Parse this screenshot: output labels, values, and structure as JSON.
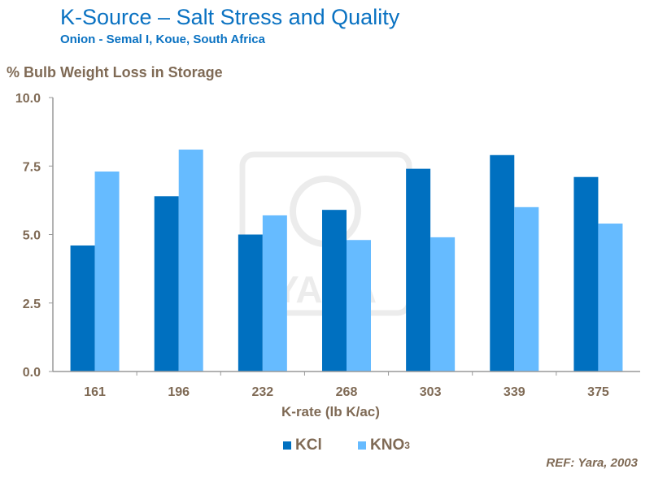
{
  "header": {
    "title": "K-Source – Salt Stress and Quality",
    "subtitle": "Onion  - Semal I, Koue, South Africa"
  },
  "ref": "REF: Yara, 2003",
  "watermark": "YARA",
  "chart_data": {
    "type": "bar",
    "ylabel": "%  Bulb Weight Loss in Storage",
    "xlabel": "K-rate (lb K/ac)",
    "categories": [
      "161",
      "196",
      "232",
      "268",
      "303",
      "339",
      "375"
    ],
    "ylim": [
      0,
      10
    ],
    "yticks": [
      "0.0",
      "2.5",
      "5.0",
      "7.5",
      "10.0"
    ],
    "grid": false,
    "legend": "bottom",
    "series": [
      {
        "name": "KCl",
        "label_main": "KCl",
        "color": "#0070c0",
        "values": [
          4.6,
          6.4,
          5.0,
          5.9,
          7.4,
          7.9,
          7.1
        ]
      },
      {
        "name": "KNO3",
        "label_main": "KNO",
        "label_sub": "3",
        "color": "#66bbff",
        "values": [
          7.3,
          8.1,
          5.7,
          4.8,
          4.9,
          6.0,
          5.4
        ]
      }
    ]
  }
}
